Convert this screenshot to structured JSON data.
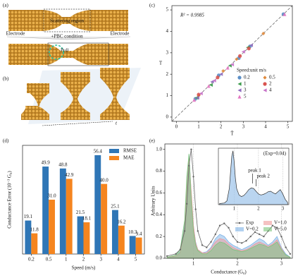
{
  "schematic": {
    "panel_a": "(a)",
    "electrode_left": "Electrode",
    "scattering_region": "Scattering region",
    "electrode_right": "Electrode",
    "pbc": "+PBC condition",
    "pull": "Pull",
    "panel_b": "(b)",
    "t_label": "t"
  },
  "chart_data": [
    {
      "type": "scatter",
      "panel": "(c)",
      "annotation": "R² = 0.9985",
      "xlabel": "T̂",
      "ylabel": "T",
      "xlim": [
        -0.2,
        5.2
      ],
      "ylim": [
        -0.2,
        5.2
      ],
      "xticks": [
        0,
        1,
        2,
        3,
        4,
        5
      ],
      "yticks": [
        0,
        1,
        2,
        3,
        4,
        5
      ],
      "legend_title": "Speed:unit m/s",
      "legend": "lower right",
      "series": [
        {
          "name": "0.2",
          "color": "#5b8fc7",
          "marker": "circle",
          "x": [
            0.85,
            1.9,
            2.8,
            3.3,
            4.8
          ],
          "y": [
            0.85,
            1.95,
            2.75,
            3.3,
            4.8
          ]
        },
        {
          "name": "0.5",
          "color": "#e08a3c",
          "marker": "diamond",
          "x": [
            1.0,
            2.1,
            2.7,
            3.9
          ],
          "y": [
            1.0,
            2.15,
            2.7,
            3.9
          ]
        },
        {
          "name": "1",
          "color": "#3a9a4a",
          "marker": "tri-left",
          "x": [
            0.9,
            1.55,
            2.4,
            3.2
          ],
          "y": [
            0.9,
            1.5,
            2.4,
            3.25
          ]
        },
        {
          "name": "2",
          "color": "#d9534f",
          "marker": "circle",
          "x": [
            1.0,
            1.85,
            2.85,
            3.25
          ],
          "y": [
            1.05,
            1.85,
            2.85,
            3.2
          ]
        },
        {
          "name": "3",
          "color": "#8e6bbf",
          "marker": "tri-left",
          "x": [
            0.95,
            1.6,
            2.0,
            3.35
          ],
          "y": [
            0.9,
            1.65,
            2.0,
            3.35
          ]
        },
        {
          "name": "4",
          "color": "#c873c9",
          "marker": "tri-left",
          "x": [
            1.1,
            1.7,
            2.5,
            3.0
          ],
          "y": [
            1.1,
            1.7,
            2.45,
            3.05
          ]
        },
        {
          "name": "5",
          "color": "#e377c2",
          "marker": "tri-up",
          "x": [
            0.8,
            1.45,
            2.3,
            4.85
          ],
          "y": [
            0.8,
            1.45,
            2.3,
            4.8
          ]
        }
      ]
    },
    {
      "type": "bar",
      "panel": "(d)",
      "xlabel": "Speed (m/s)",
      "ylabel": "Conductance Error (10⁻³ G₀)",
      "categories": [
        "0.2",
        "0.5",
        "1",
        "2",
        "3",
        "4",
        "5"
      ],
      "ylim": [
        0,
        62
      ],
      "legend": "upper right",
      "series": [
        {
          "name": "RMSE",
          "color": "#2f76b6",
          "values": [
            19.1,
            49.9,
            48.8,
            21.5,
            56.4,
            25.1,
            10.3
          ],
          "value_labels": [
            "19.1",
            "49.9",
            "48.8",
            "21.5",
            "56.4",
            "25.1",
            "10.3"
          ]
        },
        {
          "name": "MAE",
          "color": "#f5851f",
          "values": [
            11.8,
            31.0,
            42.9,
            18.1,
            40.0,
            16.2,
            9.4
          ],
          "value_labels": [
            "11.8",
            "31.0",
            "42.9",
            "18.1",
            "40.0",
            "16.2",
            "9.4"
          ]
        }
      ]
    },
    {
      "type": "line",
      "panel": "(e)",
      "xlabel": "Conductance (G₀)",
      "ylabel": "Arbitrary Units",
      "xlim": [
        0.35,
        3.25
      ],
      "ylim": [
        0,
        1.05
      ],
      "xticks": [
        1,
        2,
        3
      ],
      "yticks": [
        {
          "value": 0,
          "label": "0.0"
        },
        0.2,
        0.4,
        0.6,
        0.8,
        {
          "value": 1,
          "label": "1.0"
        }
      ],
      "xgrid": true,
      "legend": "lower right",
      "x": [
        0.4,
        0.6,
        0.7,
        0.8,
        0.85,
        0.9,
        0.95,
        1.0,
        1.05,
        1.1,
        1.2,
        1.3,
        1.4,
        1.5,
        1.6,
        1.7,
        1.8,
        1.9,
        2.0,
        2.1,
        2.2,
        2.3,
        2.4,
        2.5,
        2.6,
        2.7,
        2.8,
        2.9,
        3.0,
        3.1,
        3.2
      ],
      "series": [
        {
          "name": "Exp",
          "color": "#666666",
          "style": "line-markers",
          "values": [
            0.02,
            0.04,
            0.08,
            0.25,
            0.5,
            0.85,
            1.0,
            0.75,
            0.45,
            0.25,
            0.12,
            0.1,
            0.15,
            0.22,
            0.3,
            0.32,
            0.28,
            0.2,
            0.15,
            0.14,
            0.16,
            0.2,
            0.24,
            0.22,
            0.2,
            0.25,
            0.3,
            0.28,
            0.2,
            0.1,
            0.04
          ]
        },
        {
          "name": "V=0.2",
          "color": "#7fb3e6",
          "style": "area",
          "values": [
            0.01,
            0.02,
            0.06,
            0.3,
            0.7,
            0.95,
            0.6,
            0.3,
            0.15,
            0.08,
            0.05,
            0.06,
            0.1,
            0.18,
            0.22,
            0.2,
            0.15,
            0.12,
            0.1,
            0.08,
            0.1,
            0.12,
            0.15,
            0.18,
            0.16,
            0.12,
            0.15,
            0.2,
            0.1,
            0.04,
            0.01
          ]
        },
        {
          "name": "V=1.0",
          "color": "#ef9a9a",
          "style": "area",
          "values": [
            0.01,
            0.02,
            0.05,
            0.28,
            0.65,
            0.92,
            0.62,
            0.3,
            0.14,
            0.08,
            0.05,
            0.05,
            0.09,
            0.15,
            0.18,
            0.17,
            0.13,
            0.1,
            0.08,
            0.07,
            0.08,
            0.1,
            0.13,
            0.15,
            0.13,
            0.11,
            0.13,
            0.17,
            0.09,
            0.03,
            0.01
          ]
        },
        {
          "name": "V=5.0",
          "color": "#7cc47c",
          "style": "area",
          "values": [
            0.01,
            0.03,
            0.08,
            0.35,
            0.75,
            0.96,
            0.55,
            0.25,
            0.12,
            0.07,
            0.04,
            0.04,
            0.07,
            0.12,
            0.15,
            0.14,
            0.11,
            0.08,
            0.07,
            0.06,
            0.07,
            0.09,
            0.11,
            0.13,
            0.12,
            0.1,
            0.12,
            0.15,
            0.08,
            0.03,
            0.01
          ]
        }
      ]
    },
    {
      "type": "inset",
      "annotation": "(Exp=0.04)",
      "peak1": "peak 1",
      "peak2": "peak 2",
      "xlim": [
        0.35,
        3.25
      ],
      "ylim": [
        0,
        1.05
      ],
      "xticks": [
        1,
        2,
        3
      ],
      "color": "#9cc3ea",
      "x": [
        0.4,
        0.6,
        0.7,
        0.8,
        0.85,
        0.9,
        0.95,
        1.0,
        1.05,
        1.1,
        1.2,
        1.3,
        1.4,
        1.5,
        1.6,
        1.7,
        1.8,
        1.9,
        2.0,
        2.1,
        2.2,
        2.3,
        2.4,
        2.5,
        2.6,
        2.7,
        2.8,
        2.9,
        3.0,
        3.1,
        3.2
      ],
      "values": [
        0.02,
        0.03,
        0.07,
        0.3,
        0.6,
        0.9,
        1.0,
        0.8,
        0.5,
        0.3,
        0.18,
        0.15,
        0.17,
        0.22,
        0.28,
        0.31,
        0.3,
        0.25,
        0.2,
        0.18,
        0.19,
        0.21,
        0.24,
        0.25,
        0.22,
        0.2,
        0.24,
        0.28,
        0.2,
        0.1,
        0.04
      ]
    }
  ]
}
